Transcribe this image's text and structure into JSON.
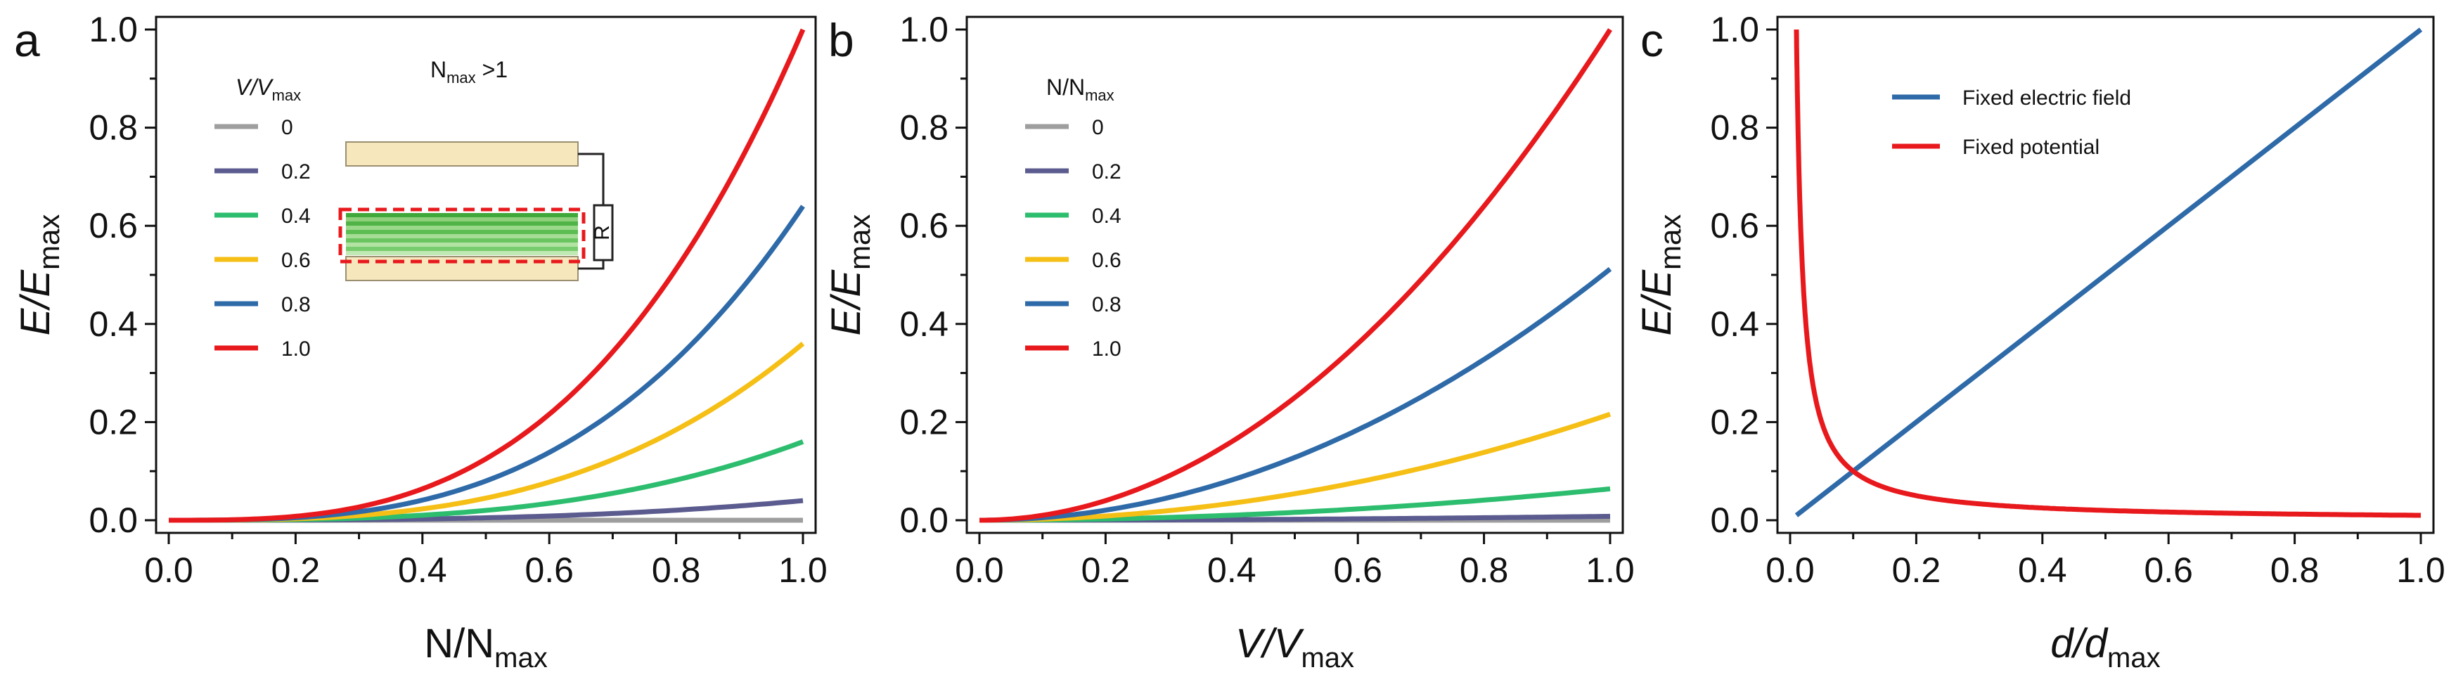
{
  "colors": {
    "gray": "#9e9e9e",
    "purple": "#5b5b8f",
    "green": "#2dbd6e",
    "yellow": "#f5bf16",
    "blue": "#2e6aa8",
    "red": "#e8191c",
    "axis": "#111111",
    "cell_fill": "#f6e7bd",
    "dashed": "#e8191c"
  },
  "chart_data": [
    {
      "panel": "a",
      "type": "line",
      "xlabel": "N/N",
      "xlabel_sub": "max",
      "ylabel": "E/E",
      "ylabel_sub": "max",
      "xlim": [
        0,
        1
      ],
      "ylim": [
        0,
        1
      ],
      "xticks": [
        "0.0",
        "0.2",
        "0.4",
        "0.6",
        "0.8",
        "1.0"
      ],
      "yticks": [
        "0.0",
        "0.2",
        "0.4",
        "0.6",
        "0.8",
        "1.0"
      ],
      "legend_title": "V/V",
      "legend_title_sub": "max",
      "inset_label": "N",
      "inset_label_sub": "max",
      "inset_label_tail": " >1",
      "inset_resistor": "R",
      "series": [
        {
          "name": "0",
          "color": "gray",
          "x": [
            0,
            0.2,
            0.4,
            0.6,
            0.8,
            1.0
          ],
          "values": [
            0,
            0,
            0,
            0,
            0,
            0
          ]
        },
        {
          "name": "0.2",
          "color": "purple",
          "x": [
            0,
            0.2,
            0.4,
            0.6,
            0.8,
            1.0
          ],
          "values": [
            0,
            0.0003,
            0.0026,
            0.0086,
            0.0205,
            0.04
          ]
        },
        {
          "name": "0.4",
          "color": "green",
          "x": [
            0,
            0.2,
            0.4,
            0.6,
            0.8,
            1.0
          ],
          "values": [
            0,
            0.0013,
            0.0102,
            0.0346,
            0.0819,
            0.16
          ]
        },
        {
          "name": "0.6",
          "color": "yellow",
          "x": [
            0,
            0.2,
            0.4,
            0.6,
            0.8,
            1.0
          ],
          "values": [
            0,
            0.0029,
            0.023,
            0.0778,
            0.1843,
            0.36
          ]
        },
        {
          "name": "0.8",
          "color": "blue",
          "x": [
            0,
            0.2,
            0.4,
            0.6,
            0.8,
            1.0
          ],
          "values": [
            0,
            0.0051,
            0.041,
            0.1382,
            0.3277,
            0.64
          ]
        },
        {
          "name": "1.0",
          "color": "red",
          "x": [
            0,
            0.2,
            0.4,
            0.6,
            0.8,
            1.0
          ],
          "values": [
            0,
            0.008,
            0.064,
            0.216,
            0.512,
            1.0
          ]
        }
      ]
    },
    {
      "panel": "b",
      "type": "line",
      "xlabel": "V/V",
      "xlabel_sub": "max",
      "ylabel": "E/E",
      "ylabel_sub": "max",
      "xlim": [
        0,
        1
      ],
      "ylim": [
        0,
        1
      ],
      "xticks": [
        "0.0",
        "0.2",
        "0.4",
        "0.6",
        "0.8",
        "1.0"
      ],
      "yticks": [
        "0.0",
        "0.2",
        "0.4",
        "0.6",
        "0.8",
        "1.0"
      ],
      "legend_title": "N/N",
      "legend_title_sub": "max",
      "series": [
        {
          "name": "0",
          "color": "gray",
          "x": [
            0,
            0.2,
            0.4,
            0.6,
            0.8,
            1.0
          ],
          "values": [
            0,
            0,
            0,
            0,
            0,
            0
          ]
        },
        {
          "name": "0.2",
          "color": "purple",
          "x": [
            0,
            0.2,
            0.4,
            0.6,
            0.8,
            1.0
          ],
          "values": [
            0,
            0.0003,
            0.0013,
            0.0029,
            0.0051,
            0.008
          ]
        },
        {
          "name": "0.4",
          "color": "green",
          "x": [
            0,
            0.2,
            0.4,
            0.6,
            0.8,
            1.0
          ],
          "values": [
            0,
            0.0026,
            0.0102,
            0.023,
            0.041,
            0.064
          ]
        },
        {
          "name": "0.6",
          "color": "yellow",
          "x": [
            0,
            0.2,
            0.4,
            0.6,
            0.8,
            1.0
          ],
          "values": [
            0,
            0.0086,
            0.0346,
            0.0778,
            0.1382,
            0.216
          ]
        },
        {
          "name": "0.8",
          "color": "blue",
          "x": [
            0,
            0.2,
            0.4,
            0.6,
            0.8,
            1.0
          ],
          "values": [
            0,
            0.0205,
            0.0819,
            0.1843,
            0.3277,
            0.512
          ]
        },
        {
          "name": "1.0",
          "color": "red",
          "x": [
            0,
            0.2,
            0.4,
            0.6,
            0.8,
            1.0
          ],
          "values": [
            0,
            0.04,
            0.16,
            0.36,
            0.64,
            1.0
          ]
        }
      ]
    },
    {
      "panel": "c",
      "type": "line",
      "xlabel": "d/d",
      "xlabel_sub": "max",
      "ylabel": "E/E",
      "ylabel_sub": "max",
      "xlim": [
        0,
        1
      ],
      "ylim": [
        0,
        1
      ],
      "xticks": [
        "0.0",
        "0.2",
        "0.4",
        "0.6",
        "0.8",
        "1.0"
      ],
      "yticks": [
        "0.0",
        "0.2",
        "0.4",
        "0.6",
        "0.8",
        "1.0"
      ],
      "series": [
        {
          "name": "Fixed electric field",
          "color": "blue",
          "x": [
            0.01,
            0.2,
            0.4,
            0.6,
            0.8,
            1.0
          ],
          "values": [
            0.01,
            0.2,
            0.4,
            0.6,
            0.8,
            1.0
          ]
        },
        {
          "name": "Fixed potential",
          "color": "red",
          "x": [
            0.01,
            0.02,
            0.03,
            0.05,
            0.1,
            0.2,
            0.4,
            0.6,
            0.8,
            1.0
          ],
          "values": [
            1.0,
            0.5,
            0.333,
            0.2,
            0.1,
            0.05,
            0.025,
            0.0167,
            0.0125,
            0.01
          ]
        }
      ]
    }
  ]
}
